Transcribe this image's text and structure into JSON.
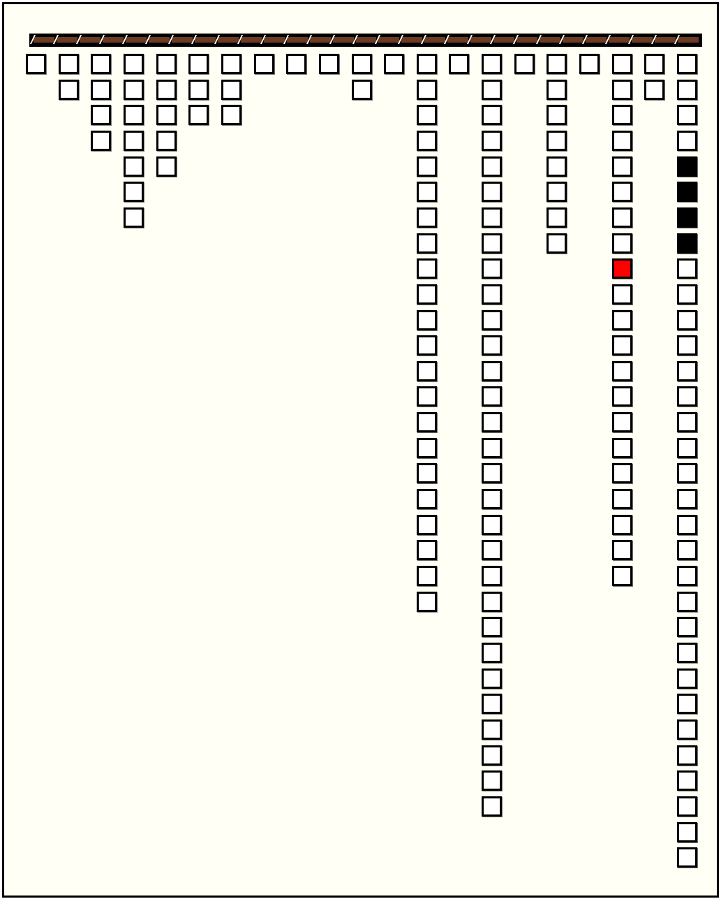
{
  "board": {
    "rail_color": "#6b3a22",
    "background_color": "#fffff5",
    "empty_color": "#ffffff",
    "column_counts": [
      1,
      2,
      4,
      7,
      5,
      3,
      3,
      1,
      1,
      1,
      2,
      1,
      22,
      1,
      30,
      1,
      8,
      1,
      21,
      2,
      32
    ],
    "colored_cells": [
      {
        "column": 19,
        "row": 9,
        "color": "#ff0000"
      },
      {
        "column": 21,
        "row": 5,
        "color": "#000000"
      },
      {
        "column": 21,
        "row": 6,
        "color": "#000000"
      },
      {
        "column": 21,
        "row": 7,
        "color": "#000000"
      },
      {
        "column": 21,
        "row": 8,
        "color": "#000000"
      }
    ]
  }
}
